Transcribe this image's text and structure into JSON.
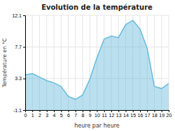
{
  "chart_data": {
    "type": "area",
    "title": "Evolution de la température",
    "x_label": "heure par heure",
    "y_label": "Température en °C",
    "x": [
      0,
      1,
      2,
      3,
      4,
      5,
      6,
      7,
      8,
      9,
      10,
      11,
      12,
      13,
      14,
      15,
      16,
      17,
      18,
      19,
      20
    ],
    "values": [
      3.8,
      4.0,
      3.5,
      3.0,
      2.7,
      2.2,
      0.8,
      0.4,
      1.0,
      3.2,
      6.2,
      8.8,
      9.2,
      9.0,
      10.8,
      11.4,
      10.2,
      7.5,
      2.2,
      1.9,
      2.6
    ],
    "color": "#66bbdd",
    "xlim": [
      0,
      20
    ],
    "xticks": [
      0,
      1,
      2,
      3,
      4,
      5,
      6,
      7,
      8,
      9,
      10,
      11,
      12,
      13,
      14,
      15,
      16,
      17,
      18,
      19,
      20
    ],
    "ylim": [
      -1.1,
      12.1
    ],
    "yticks": [
      -1.1,
      3.3,
      7.7,
      12.1
    ],
    "grid": true
  }
}
